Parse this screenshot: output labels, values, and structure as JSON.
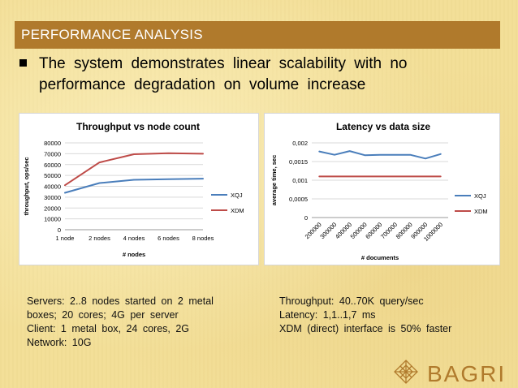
{
  "slide": {
    "title": "PERFORMANCE ANALYSIS",
    "bullet": "The system demonstrates linear scalability with no performance degradation on volume increase",
    "left_notes": [
      "Servers: 2..8 nodes started on 2 metal",
      "boxes; 20 cores; 4G per server",
      "Client: 1 metal box, 24 cores, 2G",
      "Network: 10G"
    ],
    "right_notes": [
      "Throughput: 40..70K query/sec",
      "Latency: 1,1..1,7 ms",
      "XDM (direct) interface is 50% faster"
    ],
    "logo_text": "BAGRI"
  },
  "chart_data": [
    {
      "type": "line",
      "title": "Throughput vs node count",
      "xlabel": "# nodes",
      "ylabel": "throughput, ops/sec",
      "categories": [
        "1 node",
        "2 nodes",
        "4 nodes",
        "6 nodes",
        "8 nodes"
      ],
      "ylim": [
        0,
        80000
      ],
      "yticks": [
        "0",
        "10000",
        "20000",
        "30000",
        "40000",
        "50000",
        "60000",
        "70000",
        "80000"
      ],
      "grid": true,
      "legend": "right",
      "series": [
        {
          "name": "XQJ",
          "color": "#4a7ebb",
          "values": [
            34000,
            43000,
            46000,
            46500,
            47000
          ]
        },
        {
          "name": "XDM",
          "color": "#be4b48",
          "values": [
            41000,
            62000,
            69500,
            70500,
            70000
          ]
        }
      ]
    },
    {
      "type": "line",
      "title": "Latency vs data size",
      "xlabel": "# documents",
      "ylabel": "average time, sec",
      "categories": [
        "200000",
        "300000",
        "400000",
        "500000",
        "600000",
        "700000",
        "800000",
        "900000",
        "1000000"
      ],
      "ylim": [
        0,
        0.002
      ],
      "yticks": [
        "0",
        "0,0005",
        "0,001",
        "0,0015",
        "0,002"
      ],
      "grid": true,
      "legend": "right",
      "series": [
        {
          "name": "XQJ",
          "color": "#4a7ebb",
          "values": [
            0.00177,
            0.00168,
            0.00178,
            0.00167,
            0.00168,
            0.00168,
            0.00168,
            0.00158,
            0.0017
          ]
        },
        {
          "name": "XDM",
          "color": "#be4b48",
          "values": [
            0.0011,
            0.0011,
            0.0011,
            0.0011,
            0.0011,
            0.0011,
            0.0011,
            0.0011,
            0.0011
          ]
        }
      ]
    }
  ]
}
